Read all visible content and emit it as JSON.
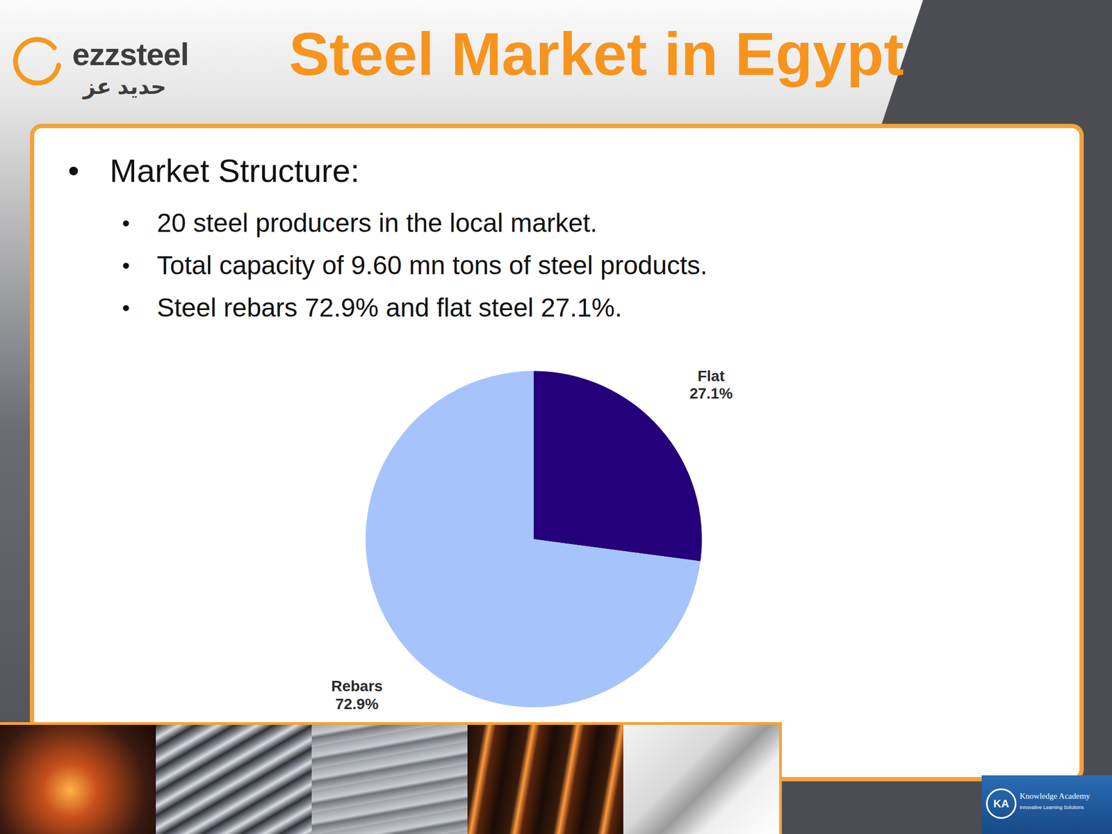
{
  "header": {
    "logo": "ezzsteel",
    "logo_arabic": "حديد عز",
    "title": "Steel Market in Egypt"
  },
  "bullets": {
    "heading": "Market Structure:",
    "items": [
      "20 steel producers in the local market.",
      "Total capacity of 9.60 mn tons of steel products.",
      "Steel rebars 72.9% and flat steel 27.1%."
    ]
  },
  "chart_data": {
    "type": "pie",
    "categories": [
      "Flat",
      "Rebars"
    ],
    "values": [
      27.1,
      72.9
    ],
    "value_labels": [
      "27.1%",
      "72.9%"
    ],
    "colors": [
      "#24007a",
      "#a6c4fb"
    ],
    "data_labels": true
  },
  "footer": {
    "badge": "KA",
    "brand": "Knowledge Academy",
    "tagline": "Innovative Learning Solutions"
  }
}
